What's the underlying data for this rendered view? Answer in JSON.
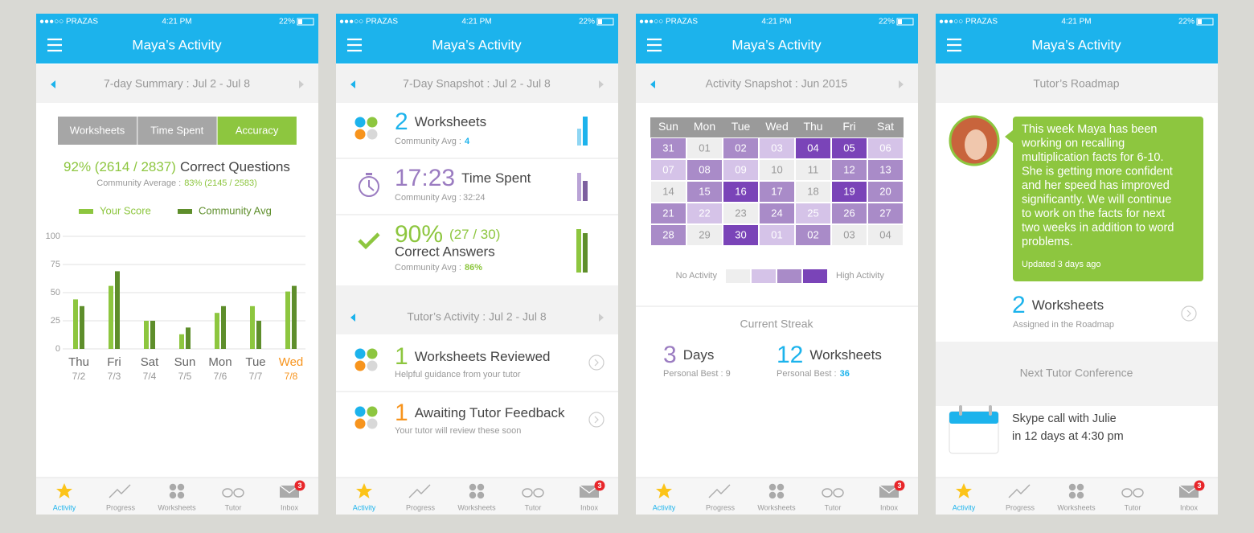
{
  "status": {
    "carrier": "●●●○○ PRAZAS",
    "time": "4:21 PM",
    "battery": "22%"
  },
  "app_title": "Maya’s Activity",
  "tabs": [
    "Activity",
    "Progress",
    "Worksheets",
    "Tutor",
    "Inbox"
  ],
  "inbox_badge": "3",
  "summary": {
    "header": "7-day Summary : Jul 2 - Jul 8",
    "segments": [
      "Worksheets",
      "Time Spent",
      "Accuracy"
    ],
    "headline_value": "92% (2614 / 2837)",
    "headline_text": "Correct Questions",
    "community_label": "Community Average :",
    "community_value": "83% (2145 / 2583)"
  },
  "chart_data": {
    "type": "bar",
    "categories": [
      "Thu",
      "Fri",
      "Sat",
      "Sun",
      "Mon",
      "Tue",
      "Wed"
    ],
    "category_dates": [
      "7/2",
      "7/3",
      "7/4",
      "7/5",
      "7/6",
      "7/7",
      "7/8"
    ],
    "label_colors": [
      "#666666",
      "#666666",
      "#666666",
      "#666666",
      "#666666",
      "#666666",
      "#f7941d"
    ],
    "series": [
      {
        "name": "Your Score",
        "color": "#8dc63f",
        "values": [
          44,
          56,
          25,
          13,
          32,
          38,
          51
        ]
      },
      {
        "name": "Community Avg",
        "color": "#5e8e2b",
        "values": [
          38,
          69,
          25,
          19,
          38,
          25,
          56
        ]
      }
    ],
    "ylim": [
      0,
      100
    ],
    "yticks": [
      0,
      25,
      50,
      75,
      100
    ],
    "grid": true
  },
  "snapshot": {
    "header": "7-Day Snapshot : Jul 2 - Jul 8",
    "worksheets": {
      "value": "2",
      "label": "Worksheets",
      "avg_label": "Community Avg :",
      "avg_value": "4"
    },
    "time": {
      "value": "17:23",
      "label": "Time Spent",
      "avg_label": "Community Avg :",
      "avg_value": "32:24"
    },
    "correct": {
      "value": "90%",
      "detail": "(27 / 30)",
      "label": "Correct Answers",
      "avg_label": "Community Avg :",
      "avg_value": "86%"
    },
    "tutor_header": "Tutor’s Activity : Jul 2 - Jul 8",
    "reviewed": {
      "value": "1",
      "label": "Worksheets Reviewed",
      "sub": "Helpful guidance from your tutor"
    },
    "awaiting": {
      "value": "1",
      "label": "Awaiting Tutor Feedback",
      "sub": "Your tutor will review these soon"
    }
  },
  "calendar": {
    "header": "Activity Snapshot : Jun 2015",
    "weekdays": [
      "Sun",
      "Mon",
      "Tue",
      "Wed",
      "Thu",
      "Fri",
      "Sat"
    ],
    "rows": [
      [
        {
          "day": "31",
          "color": "#a98bc8"
        },
        {
          "day": "01",
          "color": "#eeeeee"
        },
        {
          "day": "02",
          "color": "#a98bc8"
        },
        {
          "day": "03",
          "color": "#d5c3e8"
        },
        {
          "day": "04",
          "color": "#7a44b8"
        },
        {
          "day": "05",
          "color": "#7a44b8"
        },
        {
          "day": "06",
          "color": "#d5c3e8"
        }
      ],
      [
        {
          "day": "07",
          "color": "#d5c3e8"
        },
        {
          "day": "08",
          "color": "#a98bc8"
        },
        {
          "day": "09",
          "color": "#d5c3e8"
        },
        {
          "day": "10",
          "color": "#eeeeee"
        },
        {
          "day": "11",
          "color": "#eeeeee"
        },
        {
          "day": "12",
          "color": "#a98bc8"
        },
        {
          "day": "13",
          "color": "#a98bc8"
        }
      ],
      [
        {
          "day": "14",
          "color": "#eeeeee"
        },
        {
          "day": "15",
          "color": "#a98bc8"
        },
        {
          "day": "16",
          "color": "#7a44b8"
        },
        {
          "day": "17",
          "color": "#a98bc8"
        },
        {
          "day": "18",
          "color": "#eeeeee"
        },
        {
          "day": "19",
          "color": "#7a44b8"
        },
        {
          "day": "20",
          "color": "#a98bc8"
        }
      ],
      [
        {
          "day": "21",
          "color": "#a98bc8"
        },
        {
          "day": "22",
          "color": "#d5c3e8"
        },
        {
          "day": "23",
          "color": "#eeeeee"
        },
        {
          "day": "24",
          "color": "#a98bc8"
        },
        {
          "day": "25",
          "color": "#d5c3e8"
        },
        {
          "day": "26",
          "color": "#a98bc8"
        },
        {
          "day": "27",
          "color": "#a98bc8"
        }
      ],
      [
        {
          "day": "28",
          "color": "#a98bc8"
        },
        {
          "day": "29",
          "color": "#eeeeee"
        },
        {
          "day": "30",
          "color": "#7a44b8"
        },
        {
          "day": "01",
          "color": "#d5c3e8"
        },
        {
          "day": "02",
          "color": "#a98bc8"
        },
        {
          "day": "03",
          "color": "#eeeeee"
        },
        {
          "day": "04",
          "color": "#eeeeee"
        }
      ]
    ],
    "legend_low": "No Activity",
    "legend_high": "High Activity",
    "legend_colors": [
      "#eeeeee",
      "#d5c3e8",
      "#a98bc8",
      "#7a44b8"
    ],
    "streak_title": "Current Streak",
    "days": {
      "value": "3",
      "label": "Days",
      "best": "Personal Best : 9"
    },
    "worksheets": {
      "value": "12",
      "label": "Worksheets",
      "best_label": "Personal Best :",
      "best_value": "36"
    }
  },
  "roadmap": {
    "header": "Tutor’s Roadmap",
    "message": [
      "This week Maya has been",
      "working on recalling",
      "multiplication facts for 6-10.",
      "She is getting more confident",
      "and her speed has improved",
      "significantly.  We will continue",
      "to work on the facts for next",
      "two weeks in addition to word",
      "problems."
    ],
    "updated": "Updated 3 days ago",
    "worksheets": {
      "value": "2",
      "label": "Worksheets",
      "sub": "Assigned in the Roadmap"
    },
    "conference_header": "Next Tutor Conference",
    "conference": [
      "Skype call with Julie",
      "in 12 days at 4:30 pm"
    ]
  }
}
